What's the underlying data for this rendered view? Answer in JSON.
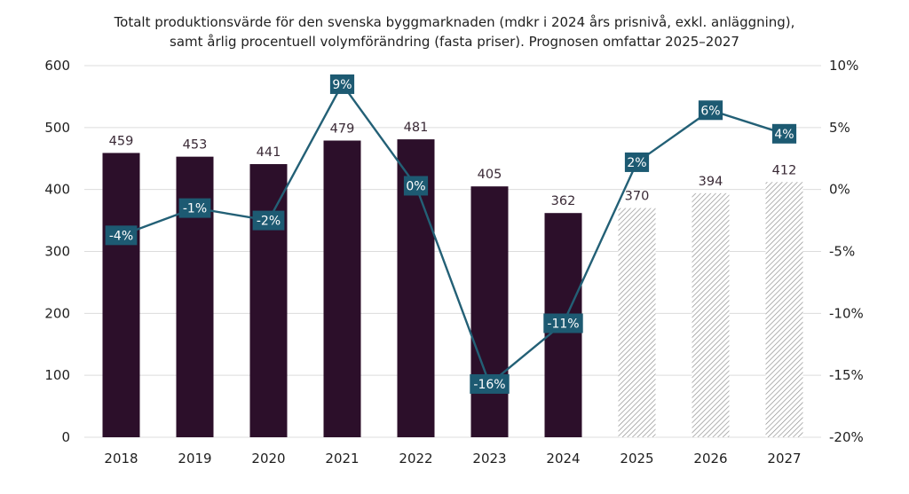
{
  "chart_data": {
    "type": "bar",
    "title": [
      "Totalt produktionsvärde för den svenska byggmarknaden (mdkr i 2024 års prisnivå, exkl. anläggning),",
      "samt årlig procentuell volymförändring (fasta priser). Prognosen omfattar 2025–2027"
    ],
    "categories": [
      "2018",
      "2019",
      "2020",
      "2021",
      "2022",
      "2023",
      "2024",
      "2025",
      "2026",
      "2027"
    ],
    "series": [
      {
        "type": "bar",
        "values": [
          459,
          453,
          441,
          479,
          481,
          405,
          362,
          370,
          394,
          412
        ],
        "forecast_from_index": 7
      },
      {
        "type": "line",
        "axis": "right",
        "values": [
          -3.7,
          -1.5,
          -2.5,
          8.5,
          0.3,
          -15.7,
          -10.8,
          2.2,
          6.4,
          4.5
        ],
        "labels": [
          "-4%",
          "-1%",
          "-2%",
          "9%",
          "0%",
          "-16%",
          "-11%",
          "2%",
          "6%",
          "4%"
        ]
      }
    ],
    "y_left": {
      "min": 0,
      "max": 600,
      "ticks": [
        0,
        100,
        200,
        300,
        400,
        500,
        600
      ]
    },
    "y_right": {
      "min": -20,
      "max": 10,
      "ticks": [
        -20,
        -15,
        -10,
        -5,
        0,
        5,
        10
      ],
      "tick_labels": [
        "-20%",
        "-15%",
        "-10%",
        "-5%",
        "0%",
        "5%",
        "10%"
      ]
    },
    "grid": true,
    "legend": false,
    "colors": {
      "bar": "#2c0f2a",
      "forecast_hatch": "#8a8a8a",
      "line": "#236076",
      "label_box": "#1d5a72",
      "grid": "#dcdcdc"
    }
  }
}
